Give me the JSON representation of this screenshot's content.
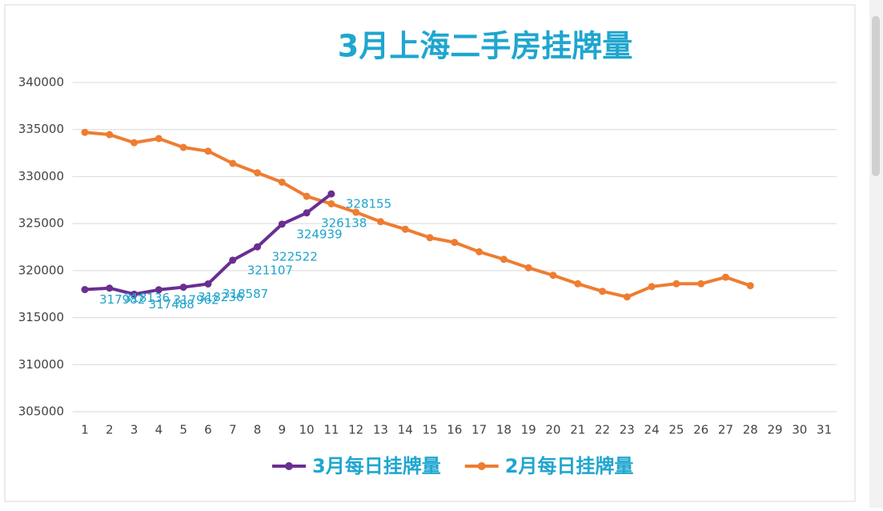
{
  "chart_data": {
    "type": "line",
    "title": "3月上海二手房挂牌量",
    "categories": [
      "1",
      "2",
      "3",
      "4",
      "5",
      "6",
      "7",
      "8",
      "9",
      "10",
      "11",
      "12",
      "13",
      "14",
      "15",
      "16",
      "17",
      "18",
      "19",
      "20",
      "21",
      "22",
      "23",
      "24",
      "25",
      "26",
      "27",
      "28",
      "29",
      "30",
      "31"
    ],
    "series": [
      {
        "name": "3月每日挂牌量",
        "color": "#6a2e91",
        "label_color": "#1ea3cc",
        "values": [
          317982,
          318136,
          317488,
          317962,
          318236,
          318587,
          321107,
          322522,
          324939,
          326138,
          328155,
          null,
          null,
          null,
          null,
          null,
          null,
          null,
          null,
          null,
          null,
          null,
          null,
          null,
          null,
          null,
          null,
          null,
          null,
          null,
          null
        ]
      },
      {
        "name": "2月每日挂牌量",
        "color": "#ee7d31",
        "values": [
          334700,
          334460,
          333600,
          334040,
          333100,
          332700,
          331400,
          330400,
          329400,
          327900,
          327100,
          326200,
          325200,
          324400,
          323500,
          323000,
          322000,
          321200,
          320300,
          319500,
          318600,
          317800,
          317200,
          318300,
          318600,
          318600,
          319300,
          318400,
          null,
          null,
          null
        ]
      }
    ],
    "ylim": [
      305000,
      340000
    ],
    "yticks": [
      305000,
      310000,
      315000,
      320000,
      325000,
      330000,
      335000,
      340000
    ],
    "grid": true,
    "legend": "bottom"
  }
}
